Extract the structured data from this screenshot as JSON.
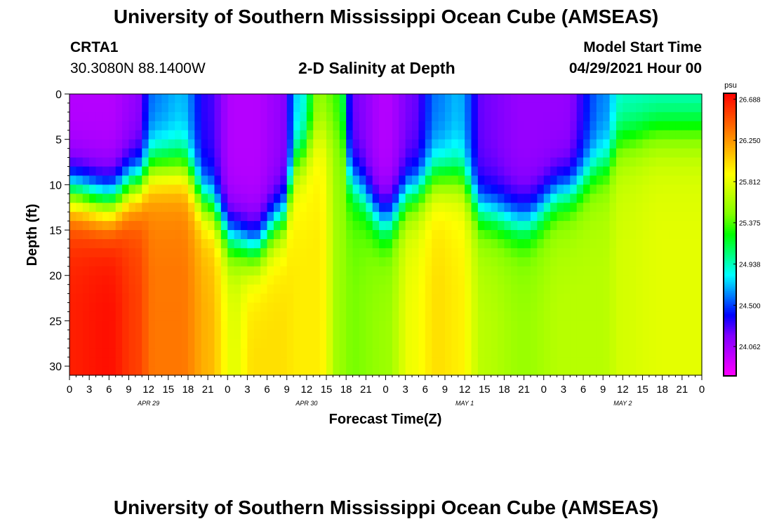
{
  "header": {
    "title_top": "University of Southern Mississippi Ocean Cube (AMSEAS)",
    "title_bottom": "University of Southern Mississippi Ocean Cube (AMSEAS)",
    "station_id": "CRTA1",
    "station_coords": "30.3080N  88.1400W",
    "plot_title": "2-D Salinity at Depth",
    "model_start_label": "Model Start Time",
    "model_start_value": "04/29/2021 Hour 00"
  },
  "chart_data": {
    "type": "heatmap",
    "title": "2-D Salinity at Depth",
    "xlabel": "Forecast Time(Z)",
    "ylabel": "Depth (ft)",
    "x_range_hours": [
      0,
      96
    ],
    "y_range_ft": [
      0,
      31
    ],
    "x_tick_labels": [
      "0",
      "3",
      "6",
      "9",
      "12",
      "15",
      "18",
      "21",
      "0",
      "3",
      "6",
      "9",
      "12",
      "15",
      "18",
      "21",
      "0",
      "3",
      "6",
      "9",
      "12",
      "15",
      "18",
      "21",
      "0",
      "3",
      "6",
      "9",
      "12",
      "15",
      "18",
      "21",
      "0"
    ],
    "day_labels": [
      "APR 29",
      "APR 30",
      "MAY 1",
      "MAY 2"
    ],
    "y_ticks": [
      0,
      5,
      10,
      15,
      20,
      25,
      30
    ],
    "colorbar": {
      "unit": "psu",
      "min": 23.75,
      "max": 26.75,
      "ticks": [
        "26.688",
        "26.250",
        "25.812",
        "25.375",
        "24.938",
        "24.500",
        "24.062"
      ],
      "colors": [
        "#ff00ff",
        "#c000ff",
        "#8000ff",
        "#0000ff",
        "#0080ff",
        "#00ffff",
        "#00ff80",
        "#00ff00",
        "#80ff00",
        "#c0ff00",
        "#ffff00",
        "#ffc000",
        "#ff8000",
        "#ff4000",
        "#ff0000"
      ]
    },
    "profiles": [
      {
        "hour": 0,
        "surface": 24.0,
        "halocline_ft": 11.0,
        "bottom": 26.6
      },
      {
        "hour": 6,
        "surface": 24.0,
        "halocline_ft": 12.0,
        "bottom": 26.65
      },
      {
        "hour": 10,
        "surface": 24.1,
        "halocline_ft": 10.0,
        "bottom": 26.5
      },
      {
        "hour": 13,
        "surface": 24.6,
        "halocline_ft": 8.0,
        "bottom": 26.3
      },
      {
        "hour": 17,
        "surface": 24.7,
        "halocline_ft": 8.0,
        "bottom": 26.3
      },
      {
        "hour": 21,
        "surface": 24.3,
        "halocline_ft": 12.0,
        "bottom": 26.1
      },
      {
        "hour": 25,
        "surface": 24.0,
        "halocline_ft": 16.0,
        "bottom": 25.75
      },
      {
        "hour": 28,
        "surface": 24.0,
        "halocline_ft": 17.0,
        "bottom": 25.95
      },
      {
        "hour": 32,
        "surface": 24.1,
        "halocline_ft": 14.0,
        "bottom": 25.95
      },
      {
        "hour": 35,
        "surface": 24.8,
        "halocline_ft": 7.0,
        "bottom": 25.9
      },
      {
        "hour": 38,
        "surface": 25.5,
        "halocline_ft": 4.0,
        "bottom": 25.9
      },
      {
        "hour": 41,
        "surface": 25.3,
        "halocline_ft": 4.0,
        "bottom": 25.5
      },
      {
        "hour": 43,
        "surface": 24.2,
        "halocline_ft": 10.0,
        "bottom": 25.4
      },
      {
        "hour": 48,
        "surface": 24.0,
        "halocline_ft": 14.0,
        "bottom": 25.5
      },
      {
        "hour": 52,
        "surface": 24.2,
        "halocline_ft": 11.0,
        "bottom": 25.8
      },
      {
        "hour": 56,
        "surface": 24.6,
        "halocline_ft": 9.0,
        "bottom": 25.95
      },
      {
        "hour": 59,
        "surface": 24.7,
        "halocline_ft": 9.0,
        "bottom": 25.9
      },
      {
        "hour": 63,
        "surface": 24.2,
        "halocline_ft": 13.0,
        "bottom": 25.6
      },
      {
        "hour": 69,
        "surface": 24.1,
        "halocline_ft": 14.0,
        "bottom": 25.5
      },
      {
        "hour": 75,
        "surface": 24.1,
        "halocline_ft": 11.0,
        "bottom": 25.6
      },
      {
        "hour": 81,
        "surface": 24.6,
        "halocline_ft": 8.0,
        "bottom": 25.6
      },
      {
        "hour": 84,
        "surface": 24.9,
        "halocline_ft": 5.0,
        "bottom": 25.7
      },
      {
        "hour": 90,
        "surface": 24.9,
        "halocline_ft": 4.0,
        "bottom": 25.75
      },
      {
        "hour": 96,
        "surface": 24.9,
        "halocline_ft": 4.0,
        "bottom": 25.75
      }
    ]
  }
}
